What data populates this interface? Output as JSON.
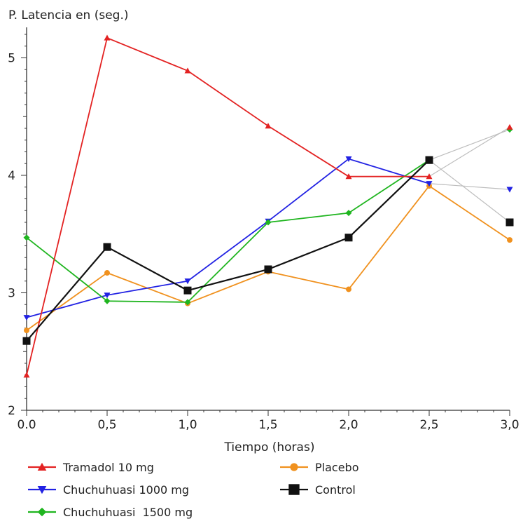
{
  "chart_data": {
    "type": "line",
    "ylabel": "P. Latencia en (seg.)",
    "xlabel": "Tiempo (horas)",
    "x": [
      0,
      0.5,
      1.0,
      1.5,
      2.0,
      2.5,
      3.0
    ],
    "x_tick_labels": [
      "0.0",
      "0,5",
      "1,0",
      "1,5",
      "2,0",
      "2,5",
      "3,0"
    ],
    "y_ticks": [
      2,
      3,
      4,
      5
    ],
    "y_tick_labels": [
      "2",
      "3",
      "4",
      "5"
    ],
    "xlim": [
      0,
      3
    ],
    "ylim": [
      2,
      5.2
    ],
    "grid": false,
    "legend_position": "bottom",
    "series": [
      {
        "name": "Tramadol 10 mg",
        "color": "#e32222",
        "marker": "triangle-up",
        "values": [
          2.3,
          5.17,
          4.89,
          4.42,
          3.99,
          3.99,
          4.41
        ],
        "last_segment_color": "#bdbdbd"
      },
      {
        "name": "Chuchuhuasi 1000 mg",
        "color": "#2222e3",
        "marker": "triangle-down",
        "values": [
          2.79,
          2.98,
          3.1,
          3.61,
          4.14,
          3.93,
          3.88
        ],
        "last_segment_color": "#bdbdbd"
      },
      {
        "name": "Chuchuhuasi  1500 mg",
        "color": "#1fb51f",
        "marker": "diamond",
        "values": [
          3.47,
          2.93,
          2.92,
          3.6,
          3.68,
          4.13,
          4.39
        ],
        "last_segment_color": "#bdbdbd"
      },
      {
        "name": "Placebo",
        "color": "#f0911e",
        "marker": "circle",
        "values": [
          2.68,
          3.17,
          2.91,
          3.18,
          3.03,
          3.91,
          3.45
        ],
        "last_segment_color": "#f0911e"
      },
      {
        "name": "Control",
        "color": "#111111",
        "marker": "square",
        "values": [
          2.59,
          3.39,
          3.02,
          3.2,
          3.47,
          4.13,
          3.6
        ],
        "last_segment_color": "#bdbdbd"
      }
    ]
  }
}
